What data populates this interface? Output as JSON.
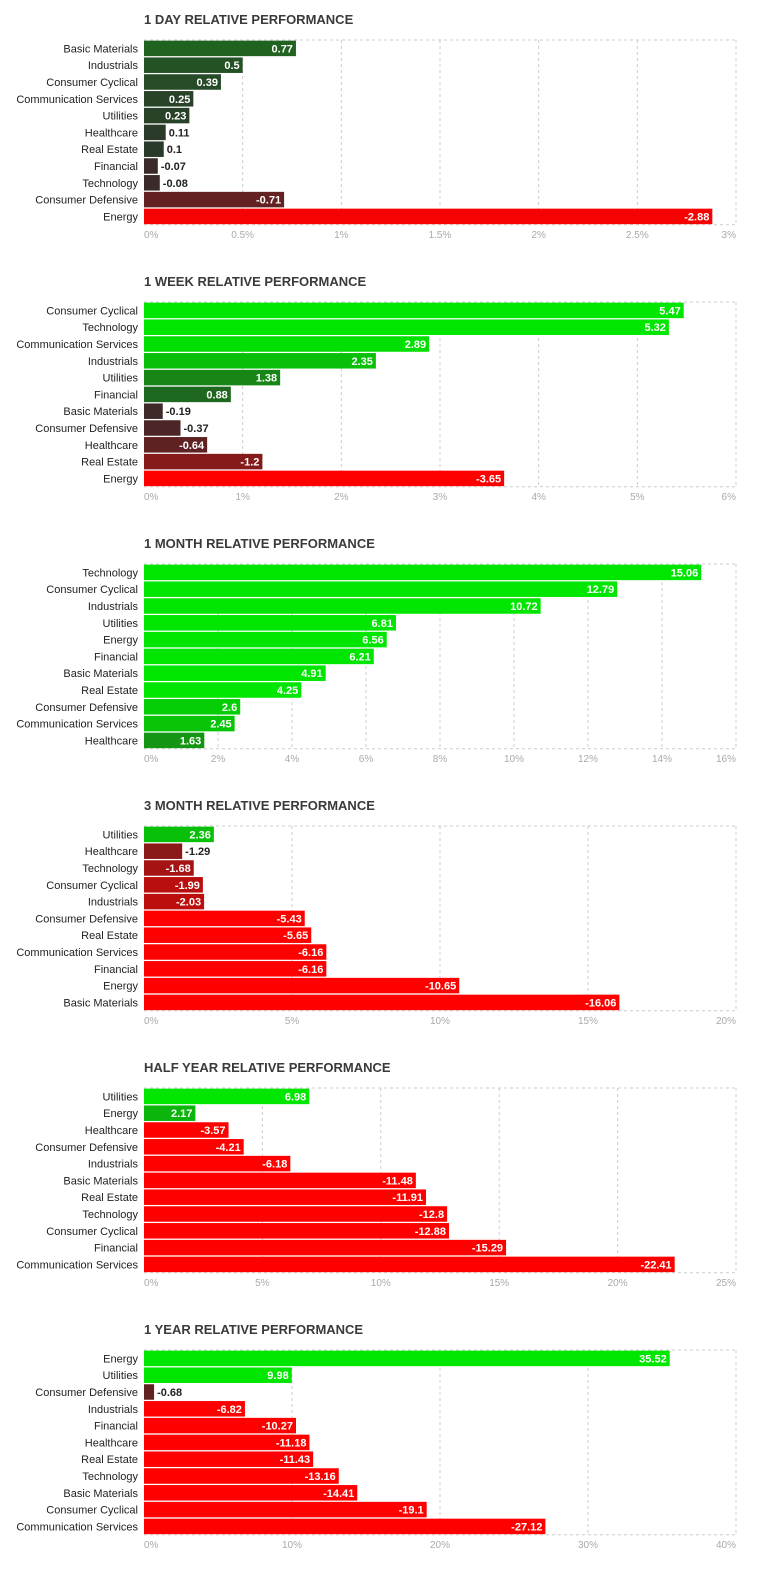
{
  "chart_data": [
    {
      "type": "bar",
      "title": "1 DAY RELATIVE PERFORMANCE",
      "categories": [
        "Basic Materials",
        "Industrials",
        "Consumer Cyclical",
        "Communication Services",
        "Utilities",
        "Healthcare",
        "Real Estate",
        "Financial",
        "Technology",
        "Consumer Defensive",
        "Energy"
      ],
      "values": [
        0.77,
        0.5,
        0.39,
        0.25,
        0.23,
        0.11,
        0.1,
        -0.07,
        -0.08,
        -0.71,
        -2.88
      ],
      "value_labels": [
        "0.77",
        "0.5",
        "0.39",
        "0.25",
        "0.23",
        "0.11",
        "0.1",
        "-0.07",
        "-0.08",
        "-0.71",
        "-2.88"
      ],
      "xlim": [
        0,
        3
      ],
      "ticks": [
        0,
        0.5,
        1,
        1.5,
        2,
        2.5,
        3
      ],
      "tick_labels": [
        "0%",
        "0.5%",
        "1%",
        "1.5%",
        "2%",
        "2.5%",
        "3%"
      ],
      "scale_by_magnitude": true,
      "grid": true
    },
    {
      "type": "bar",
      "title": "1 WEEK RELATIVE PERFORMANCE",
      "categories": [
        "Consumer Cyclical",
        "Technology",
        "Communication Services",
        "Industrials",
        "Utilities",
        "Financial",
        "Basic Materials",
        "Consumer Defensive",
        "Healthcare",
        "Real Estate",
        "Energy"
      ],
      "values": [
        5.47,
        5.32,
        2.89,
        2.35,
        1.38,
        0.88,
        -0.19,
        -0.37,
        -0.64,
        -1.2,
        -3.65
      ],
      "value_labels": [
        "5.47",
        "5.32",
        "2.89",
        "2.35",
        "1.38",
        "0.88",
        "-0.19",
        "-0.37",
        "-0.64",
        "-1.2",
        "-3.65"
      ],
      "xlim": [
        0,
        6
      ],
      "ticks": [
        0,
        1,
        2,
        3,
        4,
        5,
        6
      ],
      "tick_labels": [
        "0%",
        "1%",
        "2%",
        "3%",
        "4%",
        "5%",
        "6%"
      ],
      "scale_by_magnitude": true,
      "grid": true
    },
    {
      "type": "bar",
      "title": "1 MONTH RELATIVE PERFORMANCE",
      "categories": [
        "Technology",
        "Consumer Cyclical",
        "Industrials",
        "Utilities",
        "Energy",
        "Financial",
        "Basic Materials",
        "Real Estate",
        "Consumer Defensive",
        "Communication Services",
        "Healthcare"
      ],
      "values": [
        15.06,
        12.79,
        10.72,
        6.81,
        6.56,
        6.21,
        4.91,
        4.25,
        2.6,
        2.45,
        1.63
      ],
      "value_labels": [
        "15.06",
        "12.79",
        "10.72",
        "6.81",
        "6.56",
        "6.21",
        "4.91",
        "4.25",
        "2.6",
        "2.45",
        "1.63"
      ],
      "xlim": [
        0,
        16
      ],
      "ticks": [
        0,
        2,
        4,
        6,
        8,
        10,
        12,
        14,
        16
      ],
      "tick_labels": [
        "0%",
        "2%",
        "4%",
        "6%",
        "8%",
        "10%",
        "12%",
        "14%",
        "16%"
      ],
      "scale_by_magnitude": true,
      "grid": true
    },
    {
      "type": "bar",
      "title": "3 MONTH RELATIVE PERFORMANCE",
      "categories": [
        "Utilities",
        "Healthcare",
        "Technology",
        "Consumer Cyclical",
        "Industrials",
        "Consumer Defensive",
        "Real Estate",
        "Communication Services",
        "Financial",
        "Energy",
        "Basic Materials"
      ],
      "values": [
        2.36,
        -1.29,
        -1.68,
        -1.99,
        -2.03,
        -5.43,
        -5.65,
        -6.16,
        -6.16,
        -10.65,
        -16.06
      ],
      "value_labels": [
        "2.36",
        "-1.29",
        "-1.68",
        "-1.99",
        "-2.03",
        "-5.43",
        "-5.65",
        "-6.16",
        "-6.16",
        "-10.65",
        "-16.06"
      ],
      "xlim": [
        0,
        20
      ],
      "ticks": [
        0,
        5,
        10,
        15,
        20
      ],
      "tick_labels": [
        "0%",
        "5%",
        "10%",
        "15%",
        "20%"
      ],
      "scale_by_magnitude": true,
      "grid": true
    },
    {
      "type": "bar",
      "title": "HALF YEAR RELATIVE PERFORMANCE",
      "categories": [
        "Utilities",
        "Energy",
        "Healthcare",
        "Consumer Defensive",
        "Industrials",
        "Basic Materials",
        "Real Estate",
        "Technology",
        "Consumer Cyclical",
        "Financial",
        "Communication Services"
      ],
      "values": [
        6.98,
        2.17,
        -3.57,
        -4.21,
        -6.18,
        -11.48,
        -11.91,
        -12.8,
        -12.88,
        -15.29,
        -22.41
      ],
      "value_labels": [
        "6.98",
        "2.17",
        "-3.57",
        "-4.21",
        "-6.18",
        "-11.48",
        "-11.91",
        "-12.8",
        "-12.88",
        "-15.29",
        "-22.41"
      ],
      "xlim": [
        0,
        25
      ],
      "ticks": [
        0,
        5,
        10,
        15,
        20,
        25
      ],
      "tick_labels": [
        "0%",
        "5%",
        "10%",
        "15%",
        "20%",
        "25%"
      ],
      "scale_by_magnitude": true,
      "grid": true
    },
    {
      "type": "bar",
      "title": "1 YEAR RELATIVE PERFORMANCE",
      "categories": [
        "Energy",
        "Utilities",
        "Consumer Defensive",
        "Industrials",
        "Financial",
        "Healthcare",
        "Real Estate",
        "Technology",
        "Basic Materials",
        "Consumer Cyclical",
        "Communication Services"
      ],
      "values": [
        35.52,
        9.98,
        -0.68,
        -6.82,
        -10.27,
        -11.18,
        -11.43,
        -13.16,
        -14.41,
        -19.1,
        -27.12
      ],
      "value_labels": [
        "35.52",
        "9.98",
        "-0.68",
        "-6.82",
        "-10.27",
        "-11.18",
        "-11.43",
        "-13.16",
        "-14.41",
        "-19.1",
        "-27.12"
      ],
      "xlim": [
        0,
        40
      ],
      "ticks": [
        0,
        10,
        20,
        30,
        40
      ],
      "tick_labels": [
        "0%",
        "10%",
        "20%",
        "30%",
        "40%"
      ],
      "scale_by_magnitude": true,
      "grid": true
    }
  ],
  "colors": {
    "positive_strong": "#00e600",
    "positive_weak": "#2a3a2a",
    "negative_strong": "#ff0000",
    "negative_weak": "#3a2a2a",
    "grid": "#cccccc",
    "tick_text": "#a9a9a9",
    "category_text": "#222222",
    "title_text": "#3a3a3a"
  }
}
